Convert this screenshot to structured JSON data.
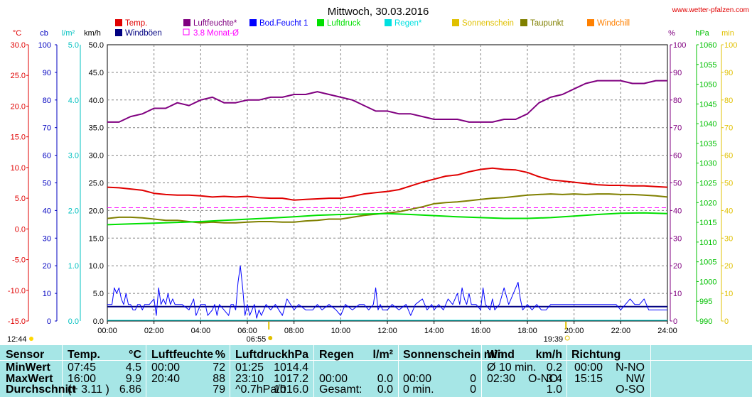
{
  "site_label": "www.wetter-pfalzen.com",
  "chart_data": {
    "type": "line",
    "title": "Mittwoch, 30.03.2016",
    "x_range": [
      0,
      24
    ],
    "x_ticks": [
      "00:00",
      "02:00",
      "04:00",
      "06:00",
      "08:00",
      "10:00",
      "12:00",
      "14:00",
      "16:00",
      "18:00",
      "20:00",
      "22:00",
      "24:00"
    ],
    "legend": [
      {
        "label": "Temp.",
        "color": "#e00000"
      },
      {
        "label": "Windböen",
        "color": "#000080"
      },
      {
        "label": "Luftfeuchte*",
        "color": "#800080"
      },
      {
        "label": "3.8 Monat-Ø",
        "color": "#ff00ff",
        "hollow": true
      },
      {
        "label": "Bod.Feucht 1",
        "color": "#0000ff"
      },
      {
        "label": "Luftdruck",
        "color": "#00e000"
      },
      {
        "label": "Regen*",
        "color": "#00e0e0"
      },
      {
        "label": "Sonnenschein",
        "color": "#e0c000"
      },
      {
        "label": "Taupunkt",
        "color": "#808000"
      },
      {
        "label": "Windchill",
        "color": "#ff8000"
      }
    ],
    "axes": {
      "celsius": {
        "unit": "°C",
        "color": "#e00000",
        "ticks": [
          "30.0",
          "25.0",
          "20.0",
          "15.0",
          "10.0",
          "5.0",
          "0.0",
          "-5.0",
          "-10.0",
          "-15.0"
        ],
        "range": [
          -15,
          30
        ]
      },
      "cb": {
        "unit": "cb",
        "color": "#0000c0",
        "ticks": [
          "100",
          "90",
          "80",
          "70",
          "60",
          "50",
          "40",
          "30",
          "20",
          "10",
          "0"
        ],
        "range": [
          0,
          100
        ]
      },
      "rain": {
        "unit": "l/m²",
        "color": "#00c0c0",
        "ticks": [
          "5.0",
          "4.0",
          "3.0",
          "2.0",
          "1.0",
          "0.0"
        ],
        "range": [
          0,
          5
        ]
      },
      "wind": {
        "unit": "km/h",
        "color": "#000000",
        "ticks": [
          "50.0",
          "45.0",
          "40.0",
          "35.0",
          "30.0",
          "25.0",
          "20.0",
          "15.0",
          "10.0",
          "5.0",
          "0.0"
        ],
        "range": [
          0,
          50
        ]
      },
      "humidity": {
        "unit": "%",
        "color": "#800080",
        "ticks": [
          "100",
          "90",
          "80",
          "70",
          "60",
          "50",
          "40",
          "30",
          "20",
          "10",
          "0"
        ],
        "range": [
          0,
          100
        ]
      },
      "pressure": {
        "unit": "hPa",
        "color": "#00c000",
        "ticks": [
          "1060",
          "1055",
          "1050",
          "1045",
          "1040",
          "1035",
          "1030",
          "1025",
          "1020",
          "1015",
          "1010",
          "1005",
          "1000",
          "995",
          "990"
        ],
        "range": [
          990,
          1060
        ]
      },
      "sun": {
        "unit": "min",
        "color": "#e0c000",
        "ticks": [
          "100",
          "90",
          "80",
          "70",
          "60",
          "50",
          "40",
          "30",
          "20",
          "10",
          "0"
        ],
        "range": [
          0,
          100
        ]
      }
    },
    "sunrise": {
      "time": "06:55",
      "hour": 6.92
    },
    "sunset": {
      "time": "19:39",
      "hour": 19.65
    },
    "moonrise": {
      "time": "12:44"
    },
    "month_avg_humidity_line": 41,
    "series": [
      {
        "name": "Luftfeuchte*",
        "axis": "humidity",
        "color": "#800080",
        "x": [
          0,
          0.5,
          1,
          1.5,
          2,
          2.5,
          3,
          3.5,
          4,
          4.5,
          5,
          5.5,
          6,
          6.5,
          7,
          7.5,
          8,
          8.5,
          9,
          9.5,
          10,
          10.5,
          11,
          11.5,
          12,
          12.5,
          13,
          13.5,
          14,
          14.5,
          15,
          15.5,
          16,
          16.5,
          17,
          17.5,
          18,
          18.5,
          19,
          19.5,
          20,
          20.5,
          21,
          21.5,
          22,
          22.5,
          23,
          23.5,
          24
        ],
        "y": [
          72,
          72,
          74,
          75,
          77,
          77,
          79,
          78,
          80,
          81,
          79,
          79,
          80,
          80,
          81,
          81,
          82,
          82,
          83,
          82,
          81,
          80,
          78,
          76,
          76,
          75,
          75,
          74,
          73,
          73,
          73,
          72,
          72,
          72,
          73,
          73,
          75,
          79,
          81,
          82,
          84,
          86,
          87,
          87,
          87,
          86,
          86,
          87,
          87
        ]
      },
      {
        "name": "Temp.",
        "axis": "celsius",
        "color": "#e00000",
        "x": [
          0,
          0.5,
          1,
          1.5,
          2,
          2.5,
          3,
          3.5,
          4,
          4.5,
          5,
          5.5,
          6,
          6.5,
          7,
          7.5,
          8,
          8.5,
          9,
          9.5,
          10,
          10.5,
          11,
          11.5,
          12,
          12.5,
          13,
          13.5,
          14,
          14.5,
          15,
          15.5,
          16,
          16.5,
          17,
          17.5,
          18,
          18.5,
          19,
          19.5,
          20,
          20.5,
          21,
          21.5,
          22,
          22.5,
          23,
          23.5,
          24
        ],
        "y": [
          6.8,
          6.7,
          6.5,
          6.3,
          5.8,
          5.6,
          5.5,
          5.5,
          5.4,
          5.2,
          5.3,
          5.2,
          5.3,
          5.1,
          5.0,
          5.0,
          4.7,
          4.8,
          4.9,
          5.0,
          5.0,
          5.3,
          5.7,
          5.9,
          6.1,
          6.4,
          7.0,
          7.6,
          8.1,
          8.6,
          8.8,
          9.3,
          9.7,
          9.9,
          9.7,
          9.6,
          9.2,
          8.5,
          8.0,
          7.8,
          7.6,
          7.4,
          7.2,
          7.1,
          7.1,
          7.0,
          7.0,
          6.9,
          6.8
        ]
      },
      {
        "name": "Taupunkt",
        "axis": "celsius",
        "color": "#808000",
        "x": [
          0,
          0.5,
          1,
          1.5,
          2,
          2.5,
          3,
          3.5,
          4,
          4.5,
          5,
          5.5,
          6,
          6.5,
          7,
          7.5,
          8,
          8.5,
          9,
          9.5,
          10,
          10.5,
          11,
          11.5,
          12,
          12.5,
          13,
          13.5,
          14,
          14.5,
          15,
          15.5,
          16,
          16.5,
          17,
          17.5,
          18,
          18.5,
          19,
          19.5,
          20,
          20.5,
          21,
          21.5,
          22,
          22.5,
          23,
          23.5,
          24
        ],
        "y": [
          1.7,
          1.9,
          1.9,
          1.8,
          1.6,
          1.4,
          1.4,
          1.2,
          1.0,
          1.1,
          1.0,
          1.0,
          1.1,
          1.2,
          1.2,
          1.1,
          1.1,
          1.3,
          1.4,
          1.6,
          1.6,
          1.9,
          2.2,
          2.4,
          2.6,
          2.8,
          3.2,
          3.6,
          4.1,
          4.3,
          4.4,
          4.6,
          4.8,
          5.0,
          5.1,
          5.3,
          5.5,
          5.6,
          5.7,
          5.6,
          5.7,
          5.6,
          5.7,
          5.7,
          5.6,
          5.6,
          5.5,
          5.4,
          5.2
        ]
      },
      {
        "name": "Luftdruck",
        "axis": "pressure",
        "color": "#00e000",
        "x": [
          0,
          1,
          2,
          3,
          4,
          5,
          6,
          7,
          8,
          9,
          10,
          11,
          12,
          13,
          14,
          15,
          16,
          17,
          18,
          19,
          20,
          21,
          22,
          23,
          24
        ],
        "y": [
          1014.4,
          1014.6,
          1014.8,
          1015.0,
          1015.2,
          1015.5,
          1015.8,
          1016.1,
          1016.4,
          1016.8,
          1017.0,
          1017.1,
          1017.2,
          1017.0,
          1016.7,
          1016.4,
          1016.2,
          1016.0,
          1016.0,
          1016.2,
          1016.6,
          1017.0,
          1017.3,
          1017.4,
          1017.2
        ]
      },
      {
        "name": "Windböen",
        "axis": "wind",
        "color": "#000080",
        "style": "avg",
        "x": [
          0,
          24
        ],
        "y": [
          2.6,
          2.6
        ]
      },
      {
        "name": "Windböen",
        "axis": "wind",
        "color": "#0000ff",
        "style": "gust",
        "x": [
          0,
          0.2,
          0.3,
          0.4,
          0.5,
          0.6,
          0.7,
          0.8,
          0.9,
          1.0,
          1.1,
          1.2,
          1.3,
          1.4,
          1.5,
          1.6,
          1.8,
          2.0,
          2.1,
          2.2,
          2.3,
          2.4,
          2.5,
          2.6,
          2.7,
          2.8,
          2.9,
          3.0,
          3.2,
          3.5,
          3.7,
          3.8,
          4.0,
          4.2,
          4.3,
          4.5,
          4.6,
          4.7,
          4.8,
          5.0,
          5.2,
          5.3,
          5.4,
          5.5,
          5.6,
          5.7,
          5.8,
          5.9,
          6.0,
          6.1,
          6.2,
          6.3,
          6.4,
          6.5,
          6.6,
          6.8,
          7.0,
          7.2,
          7.5,
          7.7,
          8.0,
          8.2,
          8.5,
          8.8,
          9.0,
          9.2,
          9.5,
          9.8,
          10.0,
          10.2,
          10.5,
          10.8,
          11.0,
          11.2,
          11.4,
          11.5,
          11.6,
          11.7,
          11.8,
          12.0,
          12.2,
          12.5,
          12.8,
          13.0,
          13.2,
          13.5,
          13.7,
          13.9,
          14.0,
          14.2,
          14.4,
          14.6,
          14.8,
          15.0,
          15.1,
          15.2,
          15.3,
          15.4,
          15.5,
          15.6,
          15.8,
          16.0,
          16.1,
          16.2,
          16.4,
          16.5,
          16.6,
          16.8,
          17.0,
          17.2,
          17.4,
          17.6,
          17.7,
          17.8,
          18.0,
          18.2,
          18.4,
          18.6,
          18.8,
          19.0,
          19.2,
          19.5,
          19.8,
          20.0,
          20.3,
          20.6,
          21.0,
          21.3,
          21.6,
          21.8,
          22.0,
          22.2,
          22.4,
          22.6,
          22.8,
          23.0,
          23.2,
          23.5,
          24
        ],
        "y": [
          3,
          3,
          6,
          5,
          6,
          4,
          3,
          5,
          3,
          3,
          2,
          2,
          3,
          3,
          2,
          3,
          3,
          4,
          1,
          6,
          3,
          4,
          3,
          5,
          3,
          4,
          3,
          3,
          3,
          2,
          4,
          1,
          3,
          3,
          1,
          2,
          3,
          1,
          3,
          2,
          1,
          3,
          3,
          2,
          7,
          10,
          6,
          1,
          3,
          1,
          2,
          3,
          0.5,
          2,
          1,
          3,
          2,
          3,
          1,
          4,
          2,
          3,
          2,
          2,
          3,
          2,
          3,
          2,
          1,
          3,
          2,
          3,
          3,
          2,
          3,
          6,
          2,
          3,
          2,
          2,
          3,
          2,
          3,
          1,
          3,
          4,
          2,
          3,
          2,
          3,
          2,
          4,
          3,
          5,
          3,
          6,
          4,
          3,
          5,
          3,
          3,
          2,
          6,
          3,
          2,
          4,
          2,
          3,
          6,
          3,
          5,
          7,
          4,
          2,
          3,
          2,
          3,
          2,
          2,
          3,
          3,
          3,
          3,
          3,
          3,
          3,
          3,
          3,
          3,
          3,
          2,
          3,
          4,
          3,
          3,
          4,
          2,
          2,
          2
        ]
      }
    ]
  },
  "table": {
    "headers": {
      "sensor": "Sensor",
      "temp": "Temp.",
      "temp_unit": "°C",
      "hum": "Luftfeuchte",
      "hum_unit": "%",
      "press": "Luftdruck",
      "press_unit": "hPa",
      "rain": "Regen",
      "rain_unit": "l/m²",
      "sun": "Sonnenschein min",
      "wind": "Wind",
      "wind_unit": "km/h",
      "dir": "Richtung"
    },
    "rows": [
      {
        "label": "MinWert",
        "temp_time": "07:45",
        "temp_val": "4.5",
        "hum_time": "00:00",
        "hum_val": "72",
        "press_time": "01:25",
        "press_val": "1014.4",
        "rain_time": "",
        "rain_val": "",
        "sun_time": "",
        "sun_val": "",
        "wind_time": "Ø 10 min.",
        "wind_val": "0.2",
        "dir_time": "00:00",
        "dir_val": "N-NO",
        "wind_dir": ""
      },
      {
        "label": "MaxWert",
        "temp_time": "16:00",
        "temp_val": "9.9",
        "hum_time": "20:40",
        "hum_val": "88",
        "press_time": "23:10",
        "press_val": "1017.2",
        "rain_time": "00:00",
        "rain_val": "0.0",
        "sun_time": "00:00",
        "sun_val": "0",
        "wind_time": "02:30",
        "wind_val": "3.4",
        "dir_time": "15:15",
        "dir_val": "NW",
        "wind_dir": "O-NO"
      },
      {
        "label": "Durchschnitt",
        "temp_time": "(+ 3.11 )",
        "temp_val": "6.86",
        "hum_time": "",
        "hum_val": "79",
        "press_time": "^0.7hPa/h",
        "press_val": "1016.0",
        "rain_time": "Gesamt:",
        "rain_val": "0.0",
        "sun_time": "0 min.",
        "sun_val": "0",
        "wind_time": "",
        "wind_val": "1.0",
        "dir_time": "",
        "dir_val": "O-SO",
        "wind_dir": ""
      }
    ]
  }
}
